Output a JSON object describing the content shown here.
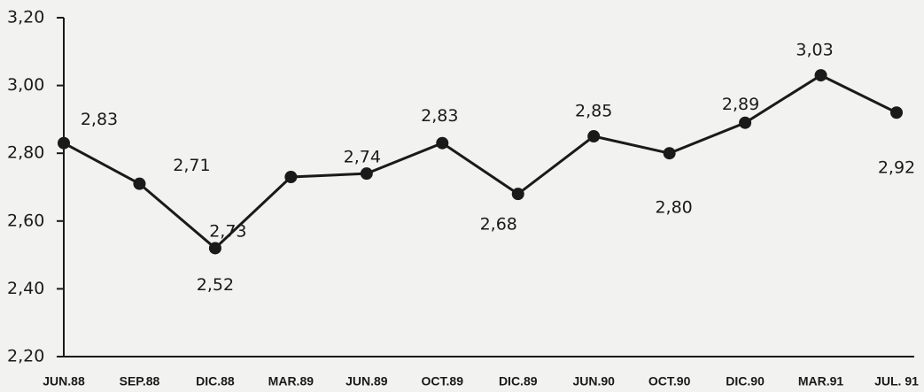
{
  "chart_data": {
    "type": "line",
    "categories": [
      "JUN.88",
      "SEP.88",
      "DIC.88",
      "MAR.89",
      "JUN.89",
      "OCT.89",
      "DIC.89",
      "JUN.90",
      "OCT.90",
      "DIC.90",
      "MAR.91",
      "JUL. 91"
    ],
    "series": [
      {
        "color": "#1a1a1a",
        "values": [
          2.83,
          2.71,
          2.52,
          2.73,
          2.74,
          2.83,
          2.68,
          2.85,
          2.8,
          2.89,
          3.03,
          2.92
        ],
        "value_labels": [
          "2,83",
          "2,71",
          "2,52",
          "2,73",
          "2,74",
          "2,83",
          "2,68",
          "2,85",
          "2,80",
          "2,89",
          "3,03",
          "2,92"
        ]
      }
    ],
    "ylim": [
      2.2,
      3.2
    ],
    "yticks": [
      {
        "value": 2.2,
        "label": "2,20"
      },
      {
        "value": 2.4,
        "label": "2,40"
      },
      {
        "value": 2.6,
        "label": "2,60"
      },
      {
        "value": 2.8,
        "label": "2,80"
      },
      {
        "value": 3.0,
        "label": "3,00"
      },
      {
        "value": 3.2,
        "label": "3,20"
      }
    ]
  }
}
